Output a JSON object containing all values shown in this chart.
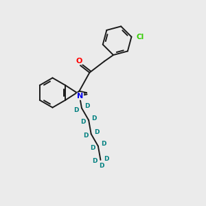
{
  "background_color": "#ebebeb",
  "bond_color": "#1a1a1a",
  "bond_width": 1.4,
  "atom_colors": {
    "O": "#ff0000",
    "N": "#0000ee",
    "Cl": "#33cc00",
    "D": "#008080",
    "C": "#1a1a1a"
  },
  "title": ""
}
